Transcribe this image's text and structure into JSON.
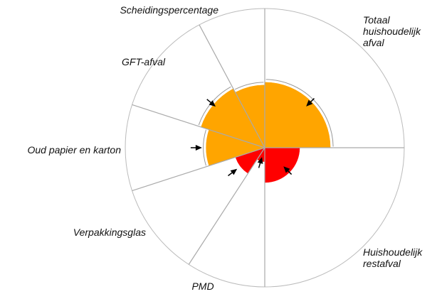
{
  "chart_data": {
    "type": "polar",
    "categories": [
      "Totaal huishoudelijk afval",
      "Huishoudelijk restafval",
      "PMD",
      "Verpakkingsglas",
      "Oud papier en karton",
      "GFT-afval",
      "Scheidingspercentage"
    ],
    "values": [
      47,
      25,
      10,
      22,
      42,
      48,
      45
    ],
    "targets": [
      44,
      21,
      9,
      27,
      47,
      48,
      null
    ],
    "colors": [
      "#ffa500",
      "#ff0000",
      "#ff0000",
      "#ff0000",
      "#ffa500",
      "#ffa500",
      "#ffa500"
    ],
    "ylim": [
      0,
      100
    ]
  }
}
